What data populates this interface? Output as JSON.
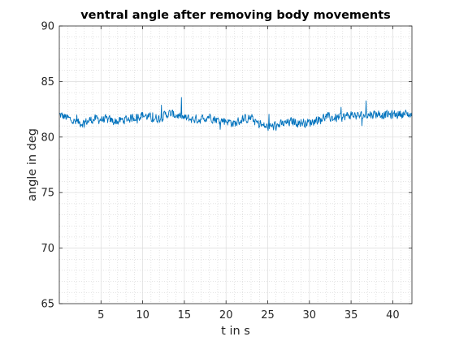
{
  "chart_data": {
    "type": "line",
    "title": "ventral angle after removing body movements",
    "xlabel": "t in s",
    "ylabel": "angle in deg",
    "xlim": [
      0,
      42.3
    ],
    "ylim": [
      65,
      90
    ],
    "x_ticks": [
      5,
      10,
      15,
      20,
      25,
      30,
      35,
      40
    ],
    "y_ticks": [
      65,
      70,
      75,
      80,
      85,
      90
    ],
    "grid": true,
    "minor_grid": true,
    "series_color": "#0072BD",
    "sample_interval_s": 0.05,
    "trend": {
      "x": [
        0,
        1,
        2,
        3,
        4,
        5,
        6,
        7,
        8,
        9,
        10,
        11,
        12,
        13,
        14,
        15,
        16,
        17,
        18,
        19,
        20,
        21,
        22,
        23,
        24,
        25,
        26,
        27,
        28,
        29,
        30,
        31,
        32,
        33,
        34,
        35,
        36,
        37,
        38,
        39,
        40,
        41,
        42.3
      ],
      "y": [
        82.0,
        81.7,
        81.3,
        81.3,
        81.6,
        81.6,
        81.5,
        81.4,
        81.6,
        81.8,
        82.0,
        81.7,
        81.7,
        82.1,
        82.0,
        81.7,
        81.6,
        81.6,
        81.9,
        81.5,
        81.5,
        81.2,
        81.6,
        81.7,
        81.1,
        80.9,
        81.0,
        81.2,
        81.4,
        81.3,
        81.3,
        81.6,
        81.8,
        81.7,
        81.8,
        82.0,
        81.9,
        82.0,
        82.1,
        82.0,
        82.0,
        82.1,
        82.0
      ]
    },
    "noise_amplitude_deg": 0.55,
    "spike_max_deg": 83.7,
    "spike_min_deg": 79.9
  }
}
